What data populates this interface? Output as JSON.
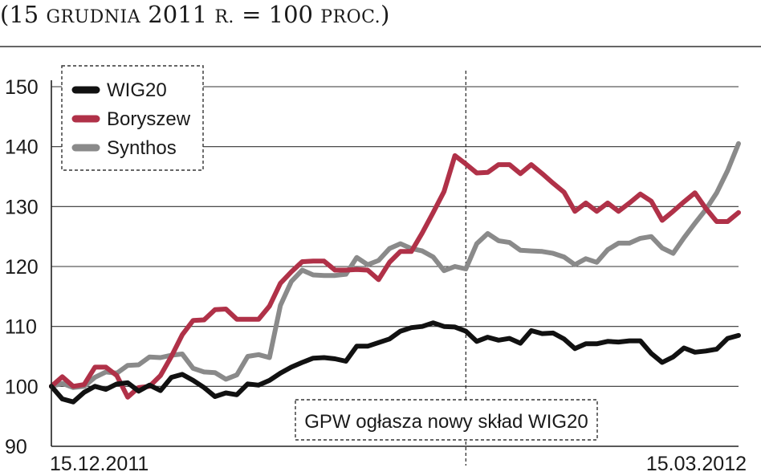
{
  "chart_data": {
    "type": "line",
    "title_parts": [
      {
        "text": "(15 ",
        "small_caps": false
      },
      {
        "text": "grudnia",
        "small_caps": true
      },
      {
        "text": " 2011 ",
        "small_caps": false
      },
      {
        "text": "r.",
        "small_caps": true
      },
      {
        "text": " = 100 ",
        "small_caps": false
      },
      {
        "text": "proc.",
        "small_caps": true
      },
      {
        "text": ")",
        "small_caps": false
      }
    ],
    "ylim": [
      90,
      150
    ],
    "yticks": [
      90,
      100,
      110,
      120,
      130,
      140,
      150
    ],
    "xlim": [
      0,
      63
    ],
    "x_start_label": "15.12.2011",
    "x_end_label": "15.03.2012",
    "grid": "horizontal",
    "legend_position": "top-left",
    "event_x": 38,
    "annotation": "GPW ogłasza nowy skład WIG20",
    "series": [
      {
        "name": "WIG20",
        "color": "#111111",
        "values": [
          100,
          97.9,
          97.4,
          99,
          100,
          99.5,
          100.4,
          100.6,
          99.2,
          100.2,
          99.3,
          101.5,
          102,
          101,
          99.8,
          98.3,
          98.9,
          98.6,
          100.4,
          100.2,
          101,
          102.2,
          103.2,
          104,
          104.7,
          104.8,
          104.6,
          104.2,
          106.7,
          106.7,
          107.3,
          107.9,
          109.2,
          109.8,
          110,
          110.6,
          110,
          109.9,
          109.2,
          107.5,
          108.2,
          107.7,
          108,
          107.2,
          109.3,
          108.8,
          108.9,
          107.9,
          106.3,
          107.1,
          107.1,
          107.5,
          107.4,
          107.6,
          107.6,
          105.5,
          104,
          104.9,
          106.4,
          105.7,
          105.9,
          106.2,
          108,
          108.5
        ]
      },
      {
        "name": "Boryszew",
        "color": "#b03148",
        "values": [
          100,
          101.6,
          100,
          100.3,
          103.2,
          103.2,
          101.8,
          98.2,
          99.8,
          100,
          101.8,
          105,
          108.6,
          111,
          111.1,
          112.8,
          112.9,
          111.2,
          111.2,
          111.2,
          113.4,
          117.2,
          119.1,
          120.8,
          120.9,
          120.9,
          119.4,
          119.4,
          119.5,
          119.4,
          117.8,
          120.7,
          122.5,
          122.5,
          125.6,
          129,
          132.5,
          138.5,
          137.1,
          135.6,
          135.7,
          137,
          137,
          135.5,
          137,
          135.5,
          133.9,
          132.4,
          129.2,
          130.6,
          129.2,
          130.6,
          129.2,
          130.6,
          132.1,
          130.9,
          127.7,
          129.2,
          130.8,
          132.3,
          129.7,
          127.5,
          127.5,
          129
        ]
      },
      {
        "name": "Synthos",
        "color": "#8a8a8a",
        "values": [
          100,
          100.5,
          99.8,
          100,
          101.5,
          102.4,
          102.2,
          103.5,
          103.6,
          104.9,
          104.8,
          105.2,
          105.4,
          103,
          102.4,
          102.3,
          101.2,
          101.9,
          105,
          105.3,
          104.8,
          113.5,
          117.5,
          119.4,
          118.6,
          118.5,
          118.5,
          118.7,
          121.5,
          120.3,
          121,
          123,
          123.8,
          123,
          122.6,
          121.6,
          119.3,
          120,
          119.6,
          123.8,
          125.5,
          124.3,
          124,
          122.7,
          122.6,
          122.5,
          122.2,
          121.6,
          120.3,
          121.3,
          120.7,
          122.8,
          123.9,
          123.9,
          124.7,
          125,
          123.1,
          122.2,
          124.8,
          127.2,
          129.5,
          132.3,
          136,
          140.5
        ]
      }
    ]
  }
}
